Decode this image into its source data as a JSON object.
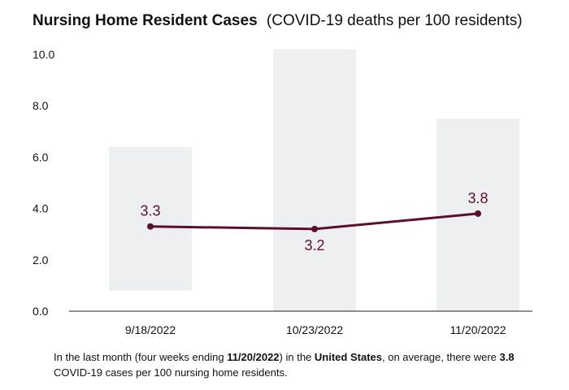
{
  "title": "Nursing Home Resident Cases",
  "subtitle": "(COVID-19 deaths per 100 residents)",
  "chart_data": {
    "type": "line",
    "categories": [
      "9/18/2022",
      "10/23/2022",
      "11/20/2022"
    ],
    "values": [
      3.3,
      3.2,
      3.8
    ],
    "value_labels": [
      "3.3",
      "3.2",
      "3.8"
    ],
    "range_bars": [
      {
        "low": 0.8,
        "high": 6.4
      },
      {
        "low": 0.0,
        "high": 10.2
      },
      {
        "low": 0.0,
        "high": 7.5
      }
    ],
    "yticks": [
      "0.0",
      "2.0",
      "4.0",
      "6.0",
      "8.0",
      "10.0"
    ],
    "ylim": [
      0,
      10.4
    ],
    "grid": false,
    "colors": {
      "line": "#5b0f2e",
      "range_bar": "#eeeff1",
      "axis": "#222222"
    }
  },
  "caption": {
    "t1": "In the last month (four weeks ending ",
    "b1": "11/20/2022",
    "t2": ") in the ",
    "b2": "United States",
    "t3": ", on average, there were ",
    "b3": "3.8",
    "t4": " COVID-19 cases per 100 nursing home residents."
  }
}
